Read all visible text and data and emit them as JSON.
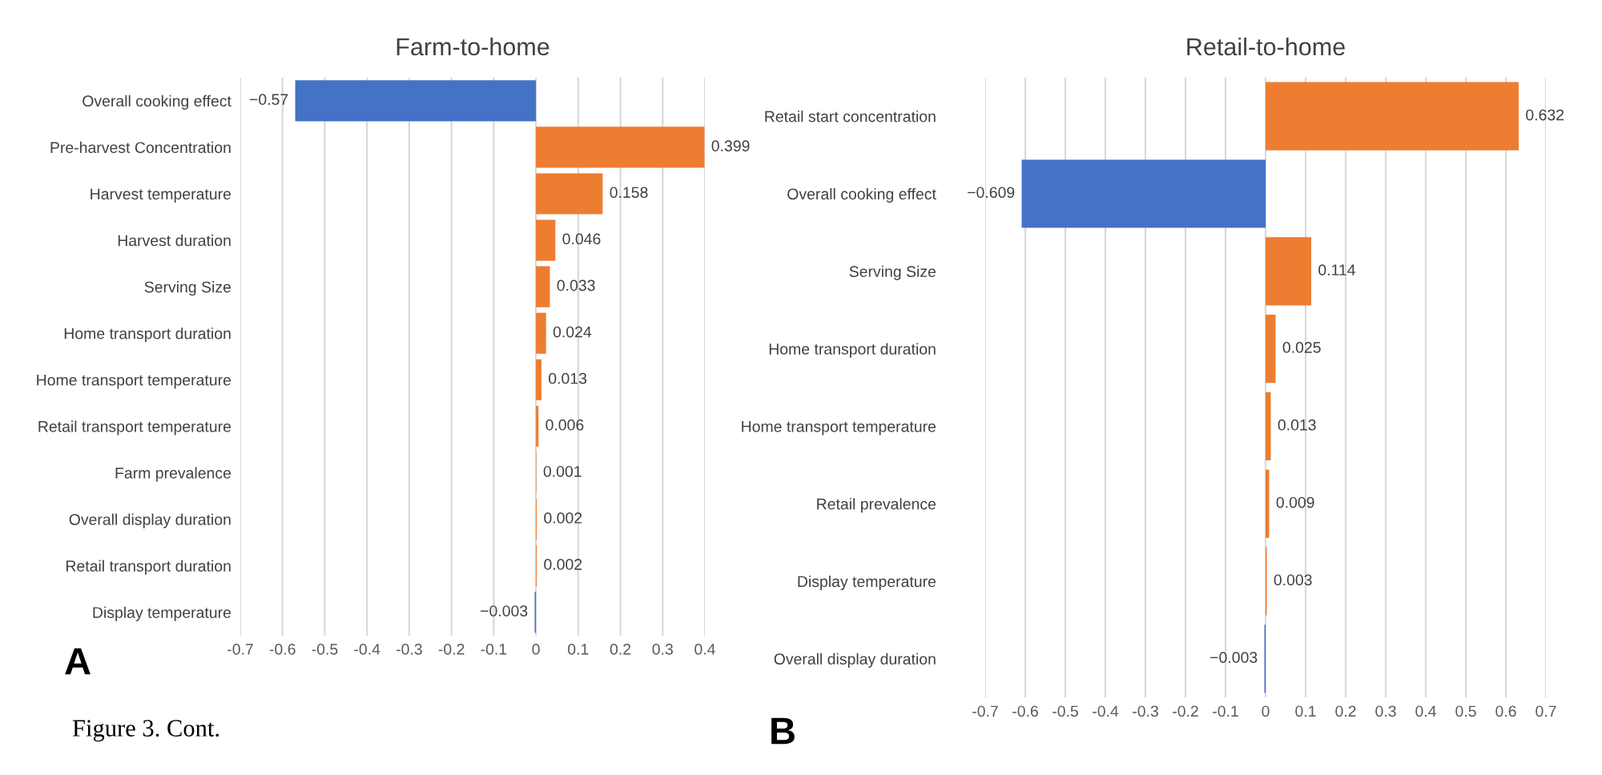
{
  "chart_data": [
    {
      "type": "bar",
      "orientation": "horizontal",
      "title": "Farm-to-home",
      "categories": [
        "Overall cooking effect",
        "Pre-harvest Concentration",
        "Harvest temperature",
        "Harvest duration",
        "Serving Size",
        "Home transport duration",
        "Home transport temperature",
        "Retail transport temperature",
        "Farm prevalence",
        "Overall display duration",
        "Retail transport duration",
        "Display temperature"
      ],
      "values": [
        -0.57,
        0.399,
        0.158,
        0.046,
        0.033,
        0.024,
        0.013,
        0.006,
        0.001,
        0.002,
        0.002,
        -0.003
      ],
      "colors": [
        "#4472c4",
        "#ed7d31",
        "#ed7d31",
        "#ed7d31",
        "#ed7d31",
        "#ed7d31",
        "#ed7d31",
        "#ed7d31",
        "#ed7d31",
        "#ed7d31",
        "#ed7d31",
        "#4472c4"
      ],
      "xlim": [
        -0.7,
        0.4
      ],
      "xticks": [
        -0.7,
        -0.6,
        -0.5,
        -0.4,
        -0.3,
        -0.2,
        -0.1,
        0,
        0.1,
        0.2,
        0.3,
        0.4
      ],
      "data_labels": true,
      "grid": "x",
      "annotations": [
        "A",
        "Figure 3. Cont."
      ]
    },
    {
      "type": "bar",
      "orientation": "horizontal",
      "title": "Retail-to-home",
      "categories": [
        "Retail start concentration",
        "Overall cooking effect",
        "Serving Size",
        "Home transport duration",
        "Home transport temperature",
        "Retail prevalence",
        "Display temperature",
        "Overall display duration"
      ],
      "values": [
        0.632,
        -0.609,
        0.114,
        0.025,
        0.013,
        0.009,
        0.003,
        -0.003
      ],
      "colors": [
        "#ed7d31",
        "#4472c4",
        "#ed7d31",
        "#ed7d31",
        "#ed7d31",
        "#ed7d31",
        "#ed7d31",
        "#4472c4"
      ],
      "xlim": [
        -0.7,
        0.7
      ],
      "xticks": [
        -0.7,
        -0.6,
        -0.5,
        -0.4,
        -0.3,
        -0.2,
        -0.1,
        0,
        0.1,
        0.2,
        0.3,
        0.4,
        0.5,
        0.6,
        0.7
      ],
      "data_labels": true,
      "grid": "x",
      "annotations": [
        "B"
      ]
    }
  ]
}
